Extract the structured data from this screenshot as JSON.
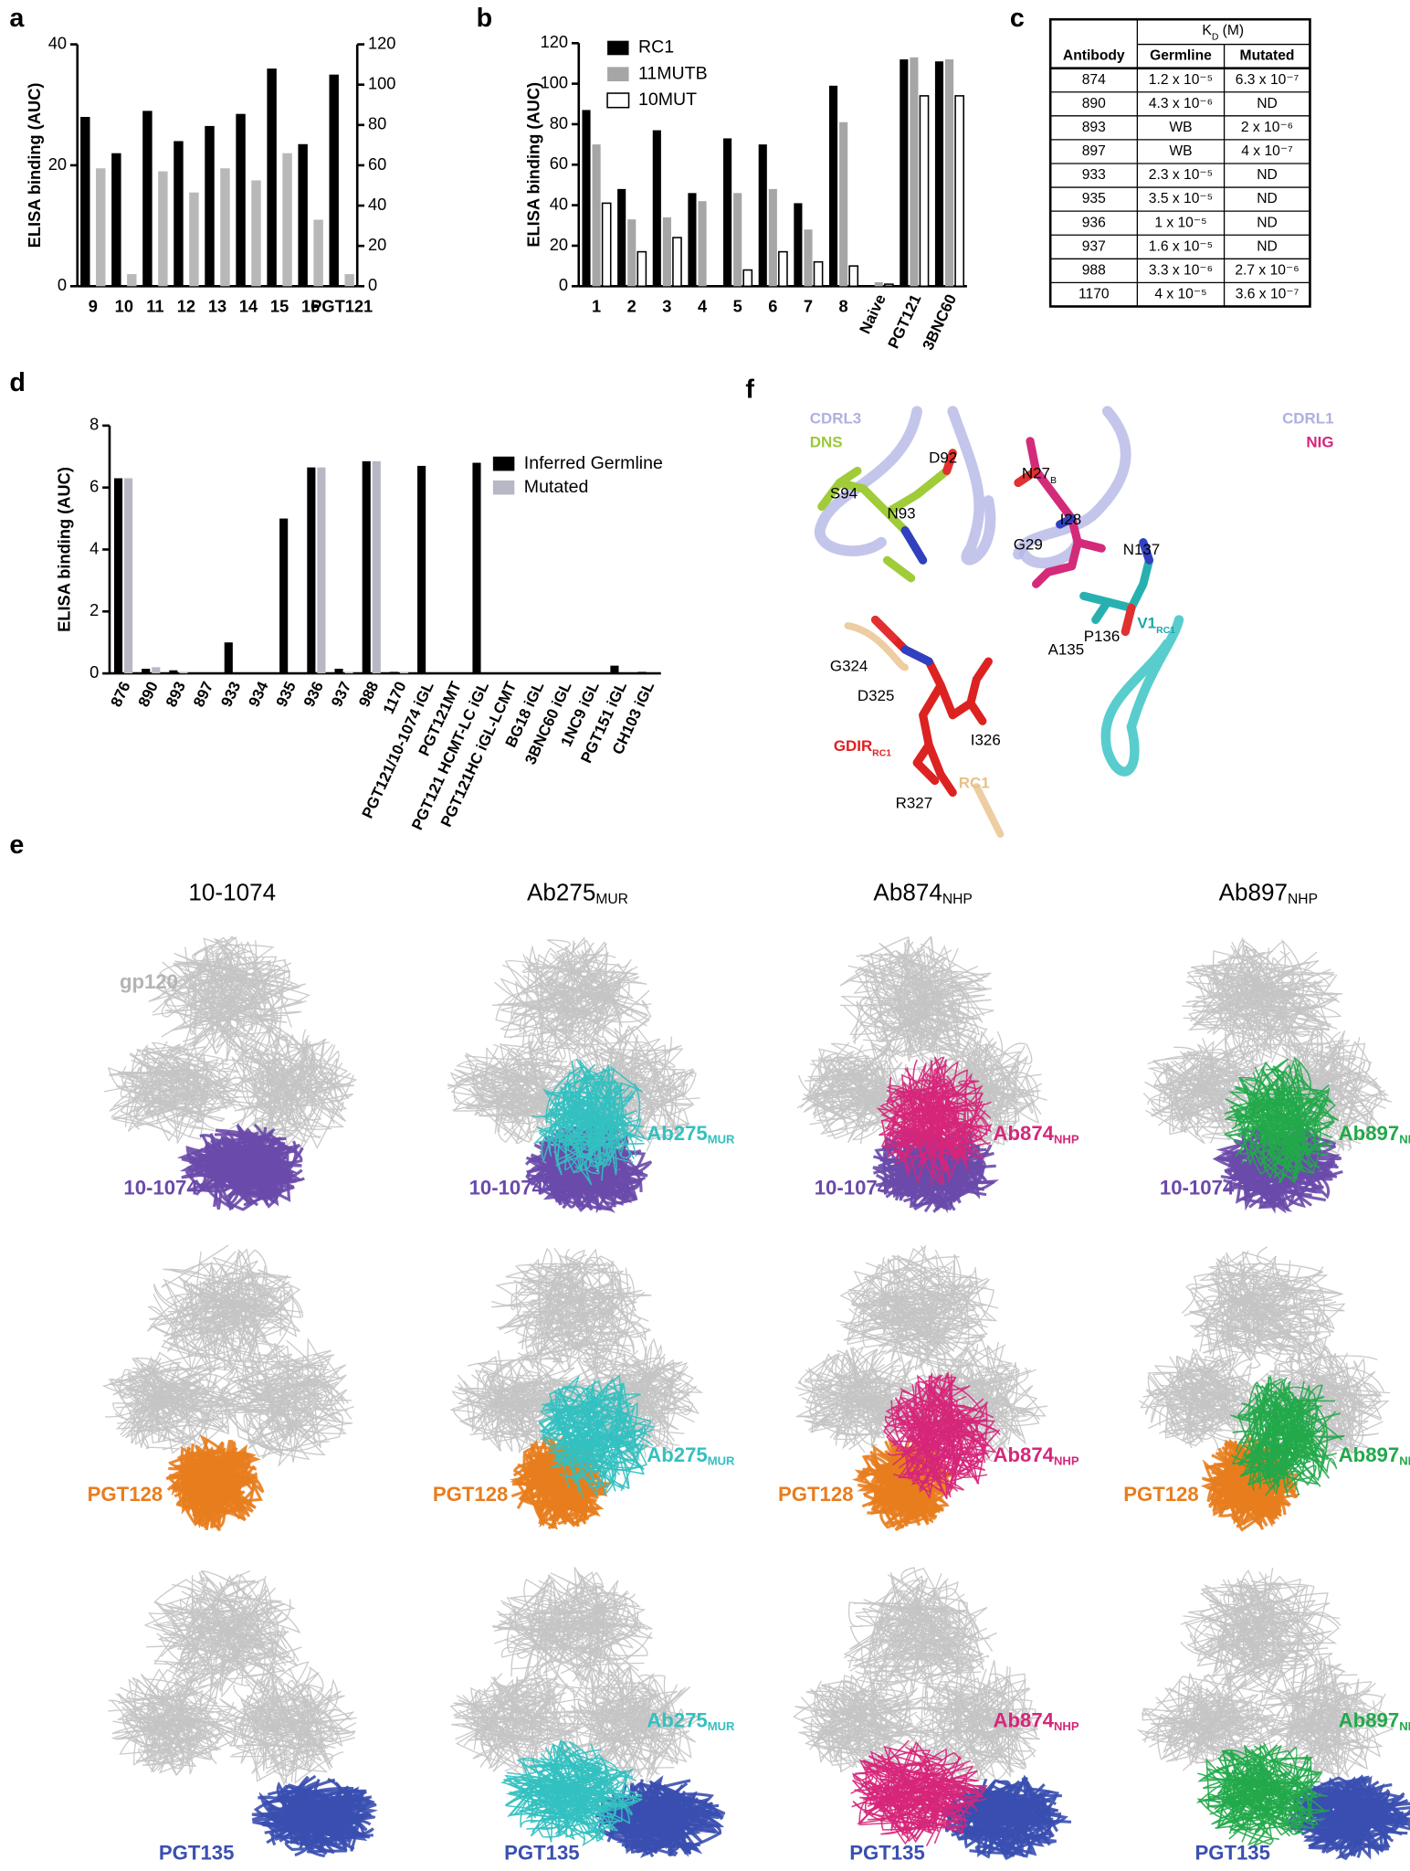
{
  "chart_data": [
    {
      "type": "bar",
      "label": "a",
      "ylabel": "ELISA binding (AUC)",
      "categories": [
        "9",
        "10",
        "11",
        "12",
        "13",
        "14",
        "15",
        "16",
        "PGT121"
      ],
      "series": [
        {
          "color": "#000000",
          "values": [
            28,
            22,
            29,
            24,
            26.5,
            28.5,
            36,
            23.5,
            35
          ]
        },
        {
          "color": "#b8b8b8",
          "axis": "y2",
          "values": [
            58.5,
            6,
            57,
            46.5,
            58.5,
            52.5,
            66,
            33,
            6
          ]
        }
      ],
      "ylim": [
        0,
        40
      ],
      "yticks": [
        0,
        20,
        40
      ],
      "y2lim": [
        0,
        120
      ],
      "y2ticks": [
        0,
        20,
        40,
        60,
        80,
        100,
        120
      ]
    },
    {
      "type": "bar",
      "label": "b",
      "ylabel": "ELISA binding (AUC)",
      "categories": [
        "1",
        "2",
        "3",
        "4",
        "5",
        "6",
        "7",
        "8",
        "Naive",
        "PGT121",
        "3BNC60"
      ],
      "series": [
        {
          "name": "RC1",
          "color": "#000000",
          "values": [
            87,
            48,
            77,
            46,
            73,
            70,
            41,
            99,
            0,
            112,
            111
          ]
        },
        {
          "name": "11MUTB",
          "color": "#a6a6a6",
          "values": [
            70,
            33,
            34,
            42,
            46,
            48,
            28,
            81,
            2,
            113,
            112
          ]
        },
        {
          "name": "10MUT",
          "color": "#ffffff",
          "values": [
            41,
            17,
            24,
            0,
            8,
            17,
            12,
            10,
            1,
            94,
            94
          ]
        }
      ],
      "ylim": [
        0,
        120
      ],
      "yticks": [
        0,
        20,
        40,
        60,
        80,
        100,
        120
      ],
      "legend": "upper left"
    },
    {
      "type": "bar",
      "label": "d",
      "ylabel": "ELISA binding (AUC)",
      "categories": [
        "876",
        "890",
        "893",
        "897",
        "933",
        "934",
        "935",
        "936",
        "937",
        "988",
        "1170",
        "PGT121/10-1074 iGL",
        "PGT121MT",
        "PGT121 HCMT-LC iGL",
        "PGT121HC iGL-LCMT",
        "BG18 iGL",
        "3BNC60 iGL",
        "1NC9 iGL",
        "PGT151 iGL",
        "CH103 iGL"
      ],
      "series": [
        {
          "name": "Inferred Germline",
          "color": "#000000",
          "values": [
            6.3,
            0.15,
            0.1,
            0,
            1.0,
            0,
            5.0,
            6.65,
            0.15,
            6.85,
            0.05,
            6.7,
            0,
            6.8,
            0,
            0,
            0,
            0,
            0.25,
            0.05
          ]
        },
        {
          "name": "Mutated",
          "color": "#b8b8c4",
          "values": [
            6.3,
            0.2,
            0.05,
            0,
            0,
            0,
            0,
            6.65,
            0.05,
            6.85,
            0.05,
            null,
            null,
            null,
            null,
            null,
            null,
            null,
            null,
            null
          ]
        }
      ],
      "ylim": [
        0,
        8
      ],
      "yticks": [
        0,
        2,
        4,
        6,
        8
      ],
      "legend": "upper right"
    }
  ],
  "table": {
    "label": "c",
    "kd": {
      "main": "K",
      "sub": "D",
      "unit": " (M)"
    },
    "header": [
      "Antibody",
      "Germline",
      "Mutated"
    ],
    "rows": [
      [
        "874",
        "1.2 x 10⁻⁵",
        "6.3 x 10⁻⁷"
      ],
      [
        "890",
        "4.3 x 10⁻⁶",
        "ND"
      ],
      [
        "893",
        "WB",
        "2 x 10⁻⁶"
      ],
      [
        "897",
        "WB",
        "4 x 10⁻⁷"
      ],
      [
        "933",
        "2.3 x 10⁻⁵",
        "ND"
      ],
      [
        "935",
        "3.5 x 10⁻⁵",
        "ND"
      ],
      [
        "936",
        "1 x 10⁻⁵",
        "ND"
      ],
      [
        "937",
        "1.6 x 10⁻⁵",
        "ND"
      ],
      [
        "988",
        "3.3 x 10⁻⁶",
        "2.7 x 10⁻⁶"
      ],
      [
        "1170",
        "4 x 10⁻⁵",
        "3.6 x 10⁻⁷"
      ]
    ]
  },
  "panel_f": {
    "label": "f",
    "labels": [
      {
        "text": "CDRL3",
        "color": "#aeb0e0"
      },
      {
        "text": "DNS",
        "color": "#9dc73a"
      },
      {
        "text": "D92"
      },
      {
        "text": "S94"
      },
      {
        "text": "N93"
      },
      {
        "text": "N27",
        "sub": "B"
      },
      {
        "text": "I28"
      },
      {
        "text": "G29"
      },
      {
        "text": "CDRL1",
        "color": "#aeb0e0"
      },
      {
        "text": "NIG",
        "color": "#d6267a"
      },
      {
        "text": "N137"
      },
      {
        "text": "V1",
        "sub": "RC1",
        "color": "#1aa8a8"
      },
      {
        "text": "A135"
      },
      {
        "text": "P136"
      },
      {
        "text": "G324"
      },
      {
        "text": "D325"
      },
      {
        "text": "GDIR",
        "sub": "RC1",
        "color": "#e02020"
      },
      {
        "text": "I326"
      },
      {
        "text": "R327"
      },
      {
        "text": "RC1",
        "color": "#e8c08a"
      }
    ]
  },
  "panel_e": {
    "label": "e",
    "gp120": "gp120",
    "columns": [
      {
        "name": "10-1074"
      },
      {
        "name": "Ab275",
        "sub": "MUR",
        "color": "#33c0c0"
      },
      {
        "name": "Ab874",
        "sub": "NHP",
        "color": "#d6267a"
      },
      {
        "name": "Ab897",
        "sub": "NHP",
        "color": "#22a84a"
      }
    ],
    "rows": [
      {
        "name": "10-1074",
        "color": "#6a4aaa"
      },
      {
        "name": "PGT128",
        "color": "#e87d1e"
      },
      {
        "name": "PGT135",
        "color": "#3a4fb0"
      }
    ]
  }
}
